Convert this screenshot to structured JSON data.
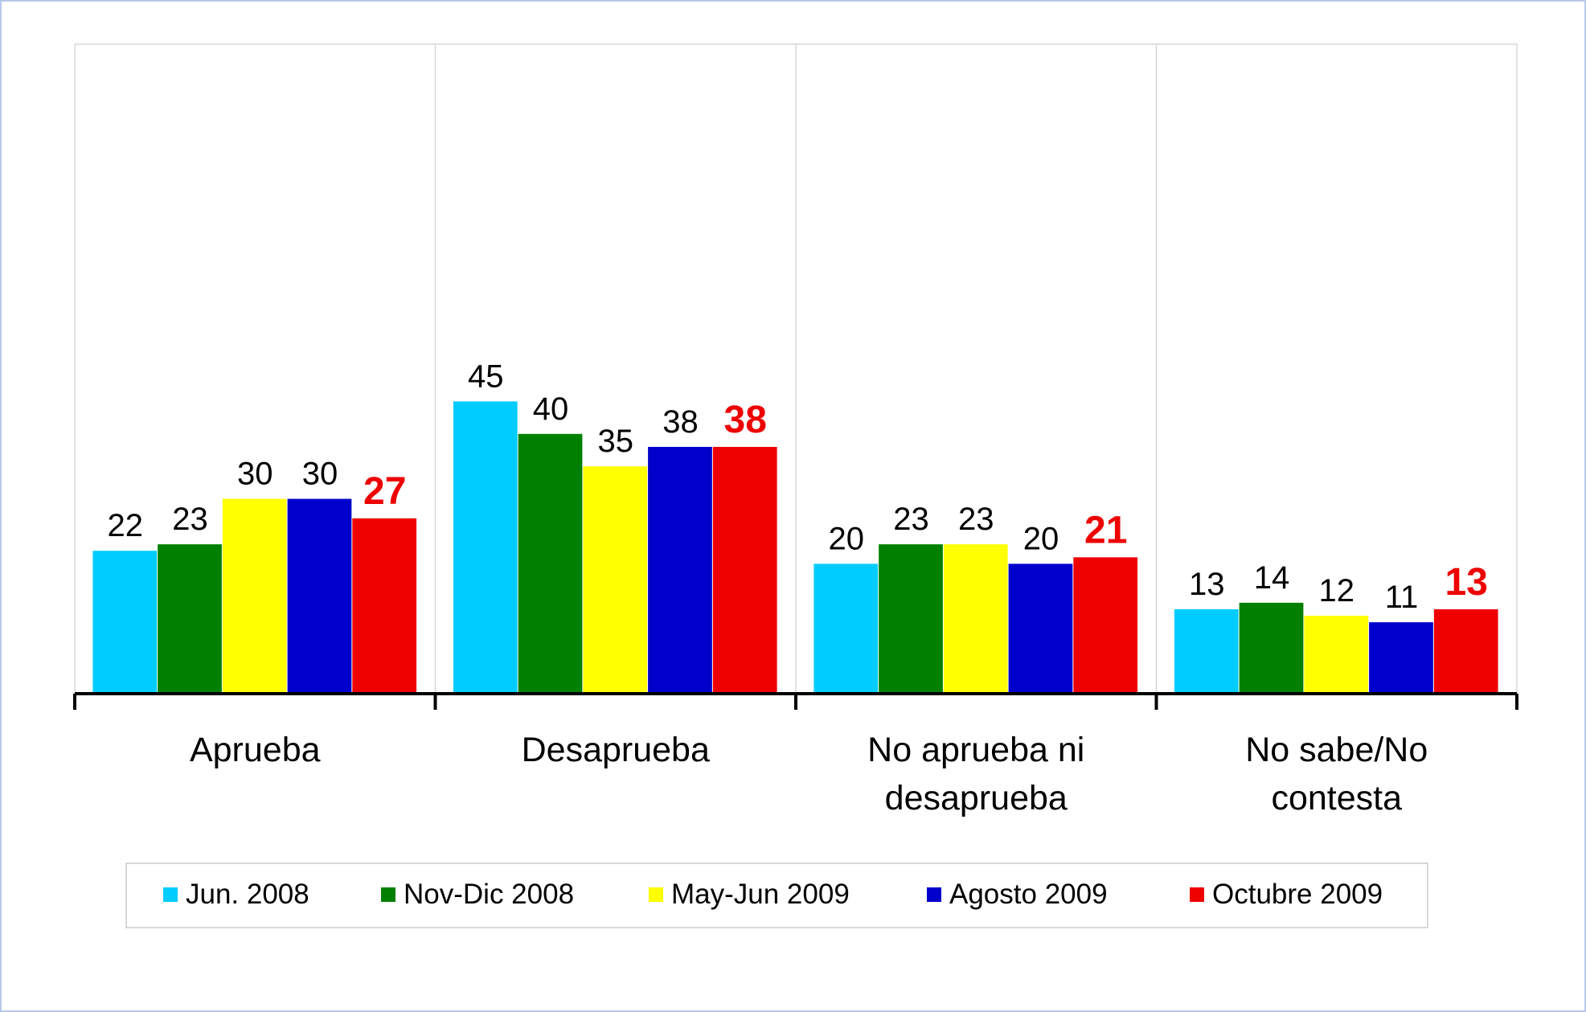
{
  "chart_data": {
    "type": "bar",
    "categories": [
      "Aprueba",
      "Desaprueba",
      "No aprueba ni desaprueba",
      "No sabe/No contesta"
    ],
    "series": [
      {
        "name": "Jun. 2008",
        "color": "#00ccff",
        "values": [
          22,
          45,
          20,
          13
        ]
      },
      {
        "name": "Nov-Dic 2008",
        "color": "#008000",
        "values": [
          23,
          40,
          23,
          14
        ]
      },
      {
        "name": "May-Jun 2009",
        "color": "#ffff00",
        "values": [
          30,
          35,
          23,
          12
        ]
      },
      {
        "name": "Agosto 2009",
        "color": "#0000cc",
        "values": [
          30,
          38,
          20,
          11
        ]
      },
      {
        "name": "Octubre 2009",
        "color": "#ee0000",
        "values": [
          27,
          38,
          21,
          13
        ],
        "label_color": "#ee0000",
        "label_bold": true
      }
    ],
    "ylim": [
      0,
      100
    ],
    "legend": "bottom"
  }
}
